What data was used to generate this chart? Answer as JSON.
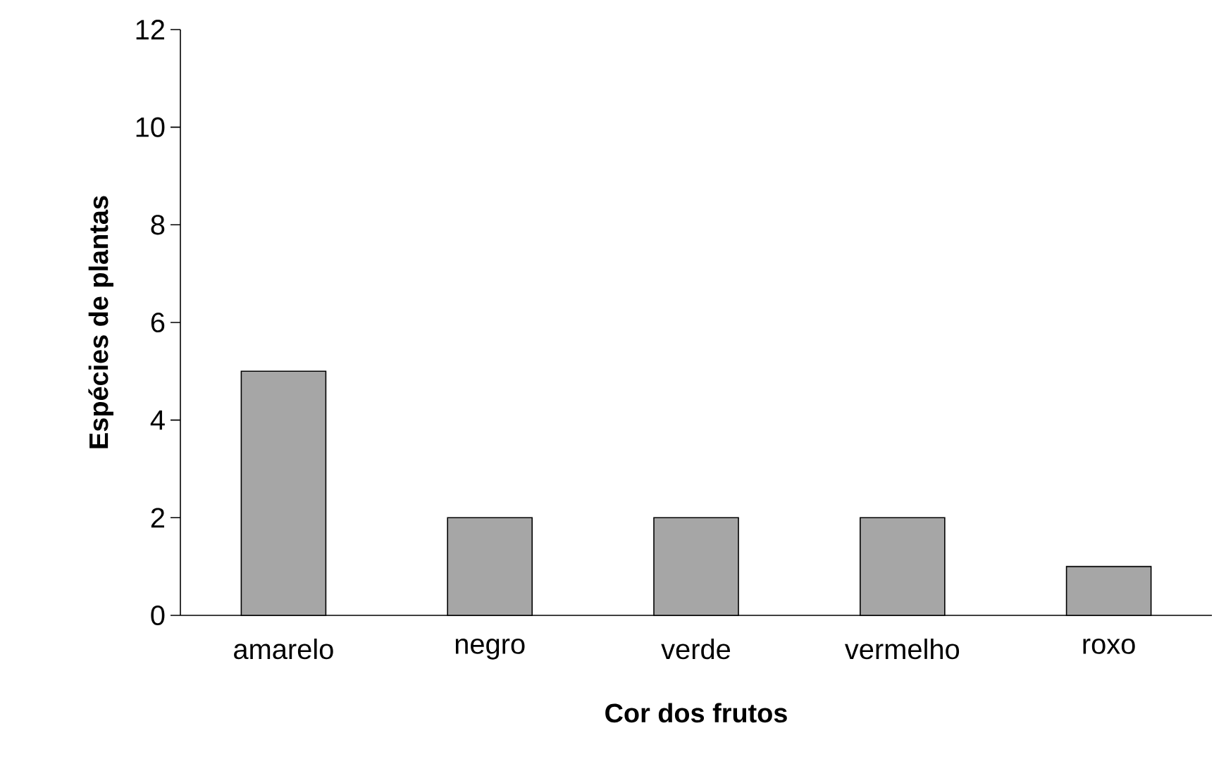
{
  "chart_data": {
    "type": "bar",
    "xlabel": "Cor dos frutos",
    "ylabel": "Espécies de plantas",
    "categories": [
      "amarelo",
      "negro",
      "verde",
      "vermelho",
      "roxo"
    ],
    "values": [
      5,
      2,
      2,
      2,
      1
    ],
    "color": "#a6a6a6",
    "ylim": [
      0,
      12
    ],
    "yticks": [
      0,
      2,
      4,
      6,
      8,
      10,
      12
    ]
  }
}
